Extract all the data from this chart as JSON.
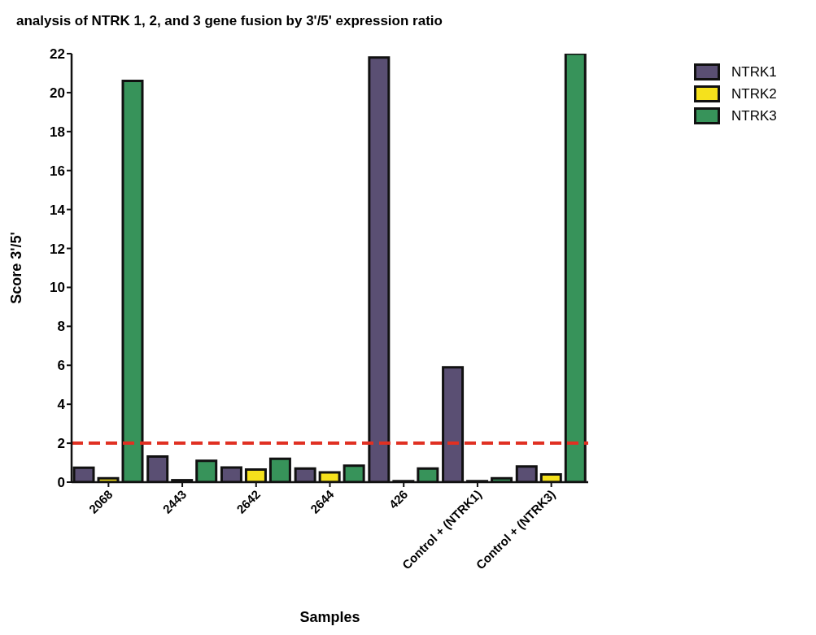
{
  "chart_data": {
    "type": "bar",
    "title": "analysis of NTRK 1, 2, and 3 gene fusion by 3'/5' expression ratio",
    "xlabel": "Samples",
    "ylabel": "Score 3'/5'",
    "categories": [
      "2068",
      "2443",
      "2642",
      "2644",
      "426",
      "Control + (NTRK1)",
      "Control + (NTRK3)"
    ],
    "series": [
      {
        "name": "NTRK1",
        "color": "#5a4f73",
        "values": [
          0.74,
          1.32,
          0.75,
          0.7,
          21.8,
          5.9,
          0.8
        ]
      },
      {
        "name": "NTRK2",
        "color": "#f5e11c",
        "values": [
          0.2,
          0.1,
          0.65,
          0.5,
          0.05,
          0.05,
          0.4
        ]
      },
      {
        "name": "NTRK3",
        "color": "#37935a",
        "values": [
          20.6,
          1.1,
          1.2,
          0.85,
          0.7,
          0.2,
          22
        ]
      }
    ],
    "ylim": [
      0,
      22
    ],
    "yticks": [
      0,
      2,
      4,
      6,
      8,
      10,
      12,
      14,
      16,
      18,
      20,
      22
    ],
    "ref_lines": [
      {
        "axis": "y",
        "value": 2,
        "color": "#e03022",
        "line_style": "dashed"
      }
    ],
    "grid": false,
    "legend": "top right"
  }
}
